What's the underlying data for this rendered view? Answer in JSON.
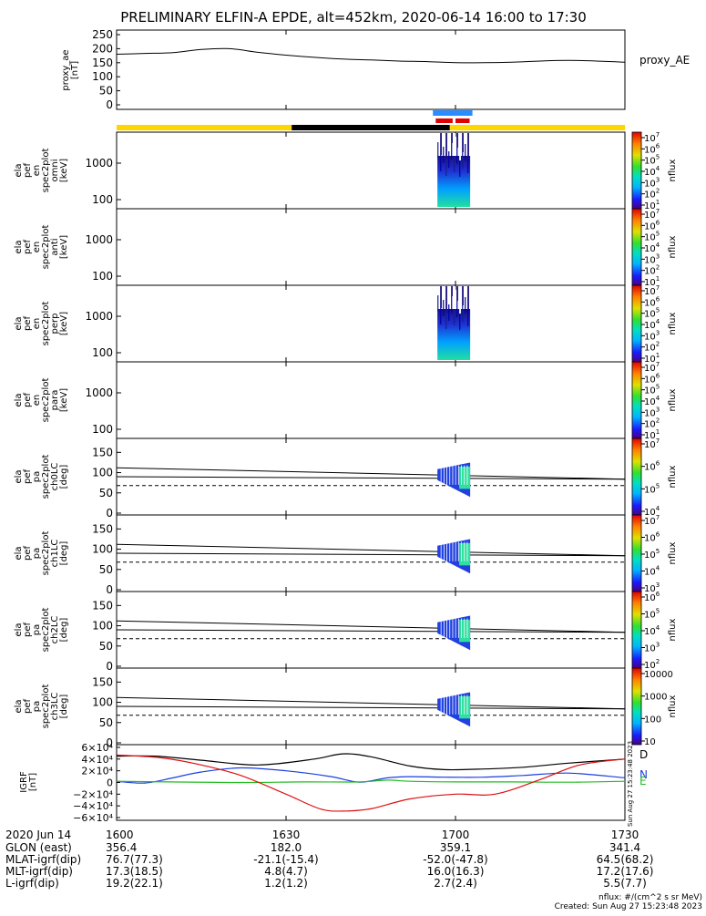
{
  "title": "PRELIMINARY ELFIN-A EPDE, alt=452km, 2020-06-14 16:00 to 17:30",
  "chart_data": [
    {
      "type": "line",
      "panel": "proxy_ae",
      "ylabel": [
        "proxy_ae",
        "[nT]"
      ],
      "legend": "proxy_AE",
      "ylim": [
        0,
        250
      ],
      "yticks": [
        "250",
        "200",
        "150",
        "100",
        "50",
        "0"
      ],
      "series": [
        {
          "name": "proxy_AE",
          "x_minutes": [
            0,
            5,
            10,
            15,
            20,
            25,
            30,
            35,
            40,
            45,
            50,
            55,
            60,
            65,
            70,
            75,
            80,
            85,
            90
          ],
          "values": [
            180,
            183,
            186,
            197,
            200,
            187,
            177,
            169,
            163,
            160,
            156,
            154,
            150,
            150,
            152,
            156,
            158,
            156,
            152
          ]
        }
      ]
    },
    {
      "type": "bar",
      "panel": "orbit_bars",
      "segments": [
        {
          "start": 0,
          "end": 31,
          "color": "#ffd700"
        },
        {
          "start": 31,
          "end": 59,
          "color": "#000000"
        },
        {
          "start": 59,
          "end": 90,
          "color": "#ffd700"
        }
      ],
      "science_blue": [
        56,
        63
      ],
      "science_red": [
        [
          56.5,
          59.5
        ],
        [
          60,
          62.5
        ]
      ]
    },
    {
      "type": "heatmap",
      "panel": "spec2plot_omni",
      "ylabel": [
        "ela",
        "pef",
        "en",
        "spec2plot",
        "omni",
        "[keV]"
      ],
      "yticks": [
        "1000",
        "100"
      ],
      "cbar_label": "nflux",
      "cbar_ticks": [
        "10^7",
        "10^6",
        "10^5",
        "10^4",
        "10^3",
        "10^2",
        "10^1"
      ],
      "active_minutes": [
        56.8,
        62.6
      ]
    },
    {
      "type": "heatmap",
      "panel": "spec2plot_anti",
      "ylabel": [
        "ela",
        "pef",
        "en",
        "spec2plot",
        "anti",
        "[keV]"
      ],
      "yticks": [
        "1000",
        "100"
      ],
      "cbar_label": "nflux",
      "cbar_ticks": [
        "10^7",
        "10^6",
        "10^5",
        "10^4",
        "10^3",
        "10^2",
        "10^1"
      ]
    },
    {
      "type": "heatmap",
      "panel": "spec2plot_perp",
      "ylabel": [
        "ela",
        "pef",
        "en",
        "spec2plot",
        "perp",
        "[keV]"
      ],
      "yticks": [
        "1000",
        "100"
      ],
      "cbar_label": "nflux",
      "cbar_ticks": [
        "10^7",
        "10^6",
        "10^5",
        "10^4",
        "10^3",
        "10^2",
        "10^1"
      ],
      "active_minutes": [
        56.8,
        62.6
      ]
    },
    {
      "type": "heatmap",
      "panel": "spec2plot_para",
      "ylabel": [
        "ela",
        "pef",
        "en",
        "spec2plot",
        "para",
        "[keV]"
      ],
      "yticks": [
        "1000",
        "100"
      ],
      "cbar_label": "nflux",
      "cbar_ticks": [
        "10^7",
        "10^6",
        "10^5",
        "10^4",
        "10^3",
        "10^2",
        "10^1"
      ]
    },
    {
      "type": "heatmap",
      "panel": "spec2plot_ch0LC",
      "ylabel": [
        "ela",
        "pef",
        "pa",
        "spec2plot",
        "ch0LC",
        "[deg]"
      ],
      "ylim": [
        0,
        180
      ],
      "yticks": [
        "150",
        "100",
        "50",
        "0"
      ],
      "cbar_label": "nflux",
      "cbar_ticks": [
        "10^7",
        "10^6",
        "10^5",
        "10^4"
      ],
      "loss_cone": {
        "x_minutes": [
          0,
          90
        ],
        "upper": [
          112,
          84
        ],
        "lower": [
          90,
          84
        ]
      },
      "dashed": 68,
      "active_minutes": [
        56.8,
        62.6
      ]
    },
    {
      "type": "heatmap",
      "panel": "spec2plot_ch1LC",
      "ylabel": [
        "ela",
        "pef",
        "pa",
        "spec2plot",
        "ch1LC",
        "[deg]"
      ],
      "ylim": [
        0,
        180
      ],
      "yticks": [
        "150",
        "100",
        "50",
        "0"
      ],
      "cbar_label": "nflux",
      "cbar_ticks": [
        "10^7",
        "10^6",
        "10^5",
        "10^4",
        "10^3"
      ],
      "loss_cone": {
        "x_minutes": [
          0,
          90
        ],
        "upper": [
          112,
          84
        ],
        "lower": [
          90,
          84
        ]
      },
      "dashed": 68,
      "active_minutes": [
        56.8,
        62.6
      ]
    },
    {
      "type": "heatmap",
      "panel": "spec2plot_ch2LC",
      "ylabel": [
        "ela",
        "pef",
        "pa",
        "spec2plot",
        "ch2LC",
        "[deg]"
      ],
      "ylim": [
        0,
        180
      ],
      "yticks": [
        "150",
        "100",
        "50",
        "0"
      ],
      "cbar_label": "nflux",
      "cbar_ticks": [
        "10^6",
        "10^5",
        "10^4",
        "10^3",
        "10^2"
      ],
      "loss_cone": {
        "x_minutes": [
          0,
          90
        ],
        "upper": [
          112,
          84
        ],
        "lower": [
          90,
          84
        ]
      },
      "dashed": 68,
      "active_minutes": [
        56.8,
        62.6
      ]
    },
    {
      "type": "heatmap",
      "panel": "spec2plot_ch3LC",
      "ylabel": [
        "ela",
        "pef",
        "pa",
        "spec2plot",
        "ch3LC",
        "[deg]"
      ],
      "ylim": [
        0,
        180
      ],
      "yticks": [
        "150",
        "100",
        "50",
        "0"
      ],
      "cbar_label": "nflux",
      "cbar_ticks": [
        "10000",
        "1000",
        "100",
        "10"
      ],
      "loss_cone": {
        "x_minutes": [
          0,
          90
        ],
        "upper": [
          112,
          84
        ],
        "lower": [
          90,
          84
        ]
      },
      "dashed": 68,
      "active_minutes": [
        56.8,
        62.6
      ]
    },
    {
      "type": "line",
      "panel": "IGRF",
      "ylabel": [
        "IGRF",
        "[nT]"
      ],
      "ylim": [
        -60000,
        60000
      ],
      "yticks": [
        "6×10⁴",
        "4×10⁴",
        "2×10⁴",
        "0",
        "−2×10⁴",
        "−4×10⁴",
        "−6×10⁴"
      ],
      "side_stamp": "Sun Aug 27 15:23:48 2023",
      "series": [
        {
          "name": "D",
          "color": "#000000",
          "x_minutes": [
            0,
            7,
            15,
            25,
            35,
            40,
            45,
            52,
            58,
            65,
            72,
            80,
            90
          ],
          "values": [
            45000,
            45000,
            38000,
            30000,
            40000,
            49000,
            44000,
            28000,
            22000,
            23000,
            26000,
            33000,
            40000
          ]
        },
        {
          "name": "N",
          "color": "#1a3fe0",
          "x_minutes": [
            0,
            5,
            10,
            15,
            22,
            30,
            38,
            43,
            48,
            52,
            58,
            65,
            72,
            80,
            90
          ],
          "values": [
            2000,
            -1000,
            8000,
            18000,
            25000,
            20000,
            10000,
            500,
            8000,
            10000,
            9000,
            9000,
            12000,
            16000,
            8000
          ]
        },
        {
          "name": "E",
          "color": "#22bb22",
          "x_minutes": [
            0,
            20,
            33,
            43,
            48,
            52,
            60,
            70,
            80,
            90
          ],
          "values": [
            2000,
            0,
            1000,
            1000,
            4000,
            2000,
            1000,
            1000,
            500,
            2000
          ]
        },
        {
          "name": "Z",
          "color": "#dd1111",
          "x_minutes": [
            0,
            8,
            15,
            22,
            30,
            36,
            40,
            45,
            52,
            60,
            67,
            75,
            82,
            90
          ],
          "values": [
            47000,
            42000,
            30000,
            12000,
            -20000,
            -45000,
            -49000,
            -45000,
            -28000,
            -20000,
            -20000,
            5000,
            30000,
            40000
          ]
        }
      ],
      "legend": [
        "D",
        "N",
        "E"
      ]
    }
  ],
  "footer": {
    "xtick_labels": [
      "1600",
      "1630",
      "1700",
      "1730"
    ],
    "rows": [
      {
        "label": "2020 Jun 14",
        "values": [
          "1600",
          "1630",
          "1700",
          "1730"
        ]
      },
      {
        "label": "GLON (east)",
        "values": [
          "356.4",
          "182.0",
          "359.1",
          "341.4"
        ]
      },
      {
        "label": "MLAT-igrf(dip)",
        "values": [
          "76.7(77.3)",
          "-21.1(-15.4)",
          "-52.0(-47.8)",
          "64.5(68.2)"
        ]
      },
      {
        "label": "MLT-igrf(dip)",
        "values": [
          "17.3(18.5)",
          "4.8(4.7)",
          "16.0(16.3)",
          "17.2(17.6)"
        ]
      },
      {
        "label": "L-igrf(dip)",
        "values": [
          "19.2(22.1)",
          "1.2(1.2)",
          "2.7(2.4)",
          "5.5(7.7)"
        ]
      }
    ],
    "note1": "nflux: #/(cm^2 s sr MeV)",
    "note2": "Created: Sun Aug 27 15:23:48 2023"
  }
}
